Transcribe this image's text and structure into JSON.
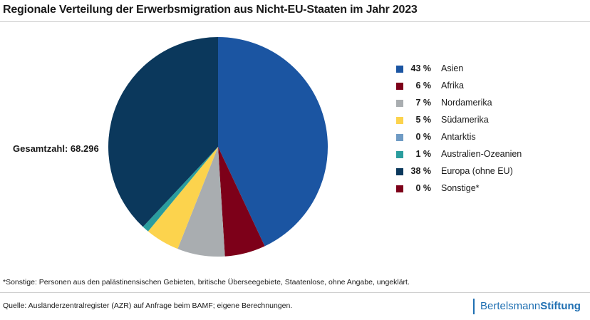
{
  "title": "Regionale Verteilung der Erwerbsmigration aus Nicht-EU-Staaten im Jahr 2023",
  "total_label": "Gesamtzahl: 68.296",
  "chart_data": {
    "type": "pie",
    "title": "Regionale Verteilung der Erwerbsmigration aus Nicht-EU-Staaten im Jahr 2023",
    "total": 68296,
    "slices": [
      {
        "label": "Asien",
        "value": 43,
        "pct_label": "43 %",
        "color": "#1b55a2"
      },
      {
        "label": "Afrika",
        "value": 6,
        "pct_label": "6 %",
        "color": "#7d0019"
      },
      {
        "label": "Nordamerika",
        "value": 7,
        "pct_label": "7 %",
        "color": "#a9adb0"
      },
      {
        "label": "Südamerika",
        "value": 5,
        "pct_label": "5 %",
        "color": "#fcd34d"
      },
      {
        "label": "Antarktis",
        "value": 0,
        "pct_label": "0 %",
        "color": "#6f9bc4"
      },
      {
        "label": "Australien-Ozeanien",
        "value": 1,
        "pct_label": "1 %",
        "color": "#2a9d9e"
      },
      {
        "label": "Europa (ohne EU)",
        "value": 38,
        "pct_label": "38 %",
        "color": "#0b385c"
      },
      {
        "label": "Sonstige*",
        "value": 0,
        "pct_label": "0 %",
        "color": "#7d0019"
      }
    ]
  },
  "footnote": "*Sonstige: Personen aus den palästinensischen Gebieten, britische Überseegebiete, Staatenlose, ohne Angabe, ungeklärt.",
  "source": "Quelle:  Ausländerzentralregister (AZR) auf Anfrage beim BAMF; eigene Berechnungen.",
  "brand": {
    "part1": "Bertelsmann",
    "part2": "Stiftung"
  }
}
